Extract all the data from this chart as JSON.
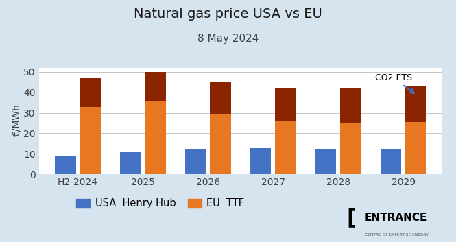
{
  "title": "Natural gas price USA vs EU",
  "subtitle": "8 May 2024",
  "ylabel": "€/MWh",
  "categories": [
    "H2-2024",
    "2025",
    "2026",
    "2027",
    "2028",
    "2029"
  ],
  "usa_values": [
    8.8,
    11.0,
    12.5,
    12.8,
    12.5,
    12.5
  ],
  "eu_ttf_base": [
    33.0,
    35.5,
    29.5,
    26.0,
    25.0,
    25.5
  ],
  "eu_co2_top": [
    47.0,
    50.0,
    45.0,
    42.0,
    42.0,
    43.0
  ],
  "usa_color": "#4472C4",
  "eu_ttf_color": "#E87722",
  "eu_co2_color": "#8B2500",
  "bg_color": "#D6E4F0",
  "plot_bg_color": "#FFFFFF",
  "ylim": [
    0,
    52
  ],
  "yticks": [
    0,
    10,
    20,
    30,
    40,
    50
  ],
  "bar_width": 0.32,
  "annotation_text": "CO2 ETS",
  "legend_usa": "USA  Henry Hub",
  "legend_eu": "EU  TTF",
  "title_fontsize": 14,
  "subtitle_fontsize": 11,
  "tick_fontsize": 10,
  "ylabel_fontsize": 10
}
